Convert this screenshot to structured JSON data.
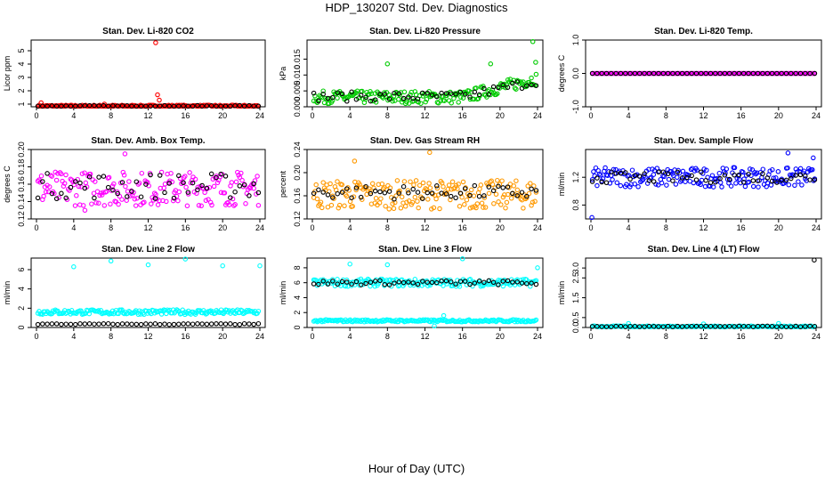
{
  "figure": {
    "title": "HDP_130207  Std. Dev. Diagnostics",
    "xlabel": "Hour of Day (UTC)"
  },
  "chart_data": [
    {
      "type": "scatter",
      "title": "Stan. Dev. Li-820 CO2",
      "xlabel": "",
      "ylabel": "Licor ppm",
      "xlim": [
        0,
        24
      ],
      "ylim": [
        0.8,
        5.8
      ],
      "xticks": [
        "0",
        "4",
        "8",
        "12",
        "16",
        "20",
        "24"
      ],
      "yticks": [
        "1",
        "2",
        "3",
        "4",
        "5"
      ],
      "series": [
        {
          "color": "#ff0000",
          "base": 0.85,
          "noise": 0.08,
          "extras": [
            [
              12.8,
              5.6
            ],
            [
              13.0,
              1.7
            ],
            [
              13.2,
              1.3
            ],
            [
              0.5,
              1.1
            ],
            [
              7.3,
              1.0
            ]
          ]
        },
        {
          "color": "#000000",
          "base": 0.85,
          "noise": 0.05,
          "extras": []
        }
      ]
    },
    {
      "type": "scatter",
      "title": "Stan. Dev. Li-820 Pressure",
      "xlabel": "",
      "ylabel": "kPa",
      "xlim": [
        0,
        24
      ],
      "ylim": [
        0,
        0.021
      ],
      "xticks": [
        "0",
        "4",
        "8",
        "12",
        "16",
        "20",
        "24"
      ],
      "yticks": [
        "0.000",
        "0.005",
        "0.010",
        "0.015"
      ],
      "series": [
        {
          "color": "#00cc00",
          "base": 0.003,
          "noise": 0.002,
          "trend": {
            "start": 16,
            "amount": 0.006
          },
          "extras": [
            [
              8,
              0.0135
            ],
            [
              19,
              0.0135
            ],
            [
              23.5,
              0.0205
            ],
            [
              23.8,
              0.014
            ]
          ]
        },
        {
          "color": "#000000",
          "base": 0.0032,
          "noise": 0.0015,
          "trend": {
            "start": 16,
            "amount": 0.005
          },
          "extras": []
        }
      ]
    },
    {
      "type": "scatter",
      "title": "Stan. Dev. Li-820 Temp.",
      "xlabel": "",
      "ylabel": "degrees C",
      "xlim": [
        0,
        24
      ],
      "ylim": [
        -1,
        1
      ],
      "xticks": [
        "0",
        "4",
        "8",
        "12",
        "16",
        "20",
        "24"
      ],
      "yticks": [
        "-1.0",
        "0.0",
        "1.0"
      ],
      "series": [
        {
          "color": "#ff00ff",
          "base": 0,
          "noise": 0,
          "extras": []
        },
        {
          "color": "#000000",
          "base": 0,
          "noise": 0,
          "extras": []
        }
      ]
    },
    {
      "type": "scatter",
      "title": "Stan. Dev. Amb. Box Temp.",
      "xlabel": "",
      "ylabel": "degrees C",
      "xlim": [
        0,
        24
      ],
      "ylim": [
        0.12,
        0.2
      ],
      "xticks": [
        "0",
        "4",
        "8",
        "12",
        "16",
        "20",
        "24"
      ],
      "yticks": [
        "0.12",
        "0.14",
        "0.16",
        "0.18",
        "0.20"
      ],
      "series": [
        {
          "color": "#ff00ff",
          "base": 0.155,
          "noise": 0.02,
          "extras": [
            [
              9.5,
              0.195
            ],
            [
              5.2,
              0.13
            ]
          ]
        },
        {
          "color": "#000000",
          "base": 0.158,
          "noise": 0.015,
          "extras": []
        }
      ]
    },
    {
      "type": "scatter",
      "title": "Stan. Dev. Gas Stream RH",
      "xlabel": "",
      "ylabel": "percent",
      "xlim": [
        0,
        24
      ],
      "ylim": [
        0.12,
        0.24
      ],
      "xticks": [
        "0",
        "4",
        "8",
        "12",
        "16",
        "20",
        "24"
      ],
      "yticks": [
        "0.12",
        "0.16",
        "0.20",
        "0.24"
      ],
      "series": [
        {
          "color": "#ff9900",
          "base": 0.162,
          "noise": 0.025,
          "extras": [
            [
              12.5,
              0.235
            ],
            [
              4.5,
              0.22
            ]
          ]
        },
        {
          "color": "#000000",
          "base": 0.166,
          "noise": 0.012,
          "extras": []
        }
      ]
    },
    {
      "type": "scatter",
      "title": "Stan. Dev. Sample Flow",
      "xlabel": "",
      "ylabel": "ml/min",
      "xlim": [
        0,
        24
      ],
      "ylim": [
        0.6,
        1.6
      ],
      "xticks": [
        "0",
        "4",
        "8",
        "12",
        "16",
        "20",
        "24"
      ],
      "yticks": [
        "0.8",
        "1.2"
      ],
      "series": [
        {
          "color": "#0000ff",
          "base": 1.2,
          "noise": 0.14,
          "extras": [
            [
              0.1,
              0.62
            ],
            [
              21,
              1.55
            ],
            [
              23.7,
              1.48
            ]
          ]
        },
        {
          "color": "#000000",
          "base": 1.2,
          "noise": 0.08,
          "extras": []
        }
      ]
    },
    {
      "type": "scatter",
      "title": "Stan. Dev. Line 2 Flow",
      "xlabel": "",
      "ylabel": "ml/min",
      "xlim": [
        0,
        24
      ],
      "ylim": [
        0,
        7.2
      ],
      "xticks": [
        "0",
        "4",
        "8",
        "12",
        "16",
        "20",
        "24"
      ],
      "yticks": [
        "0",
        "2",
        "4",
        "6"
      ],
      "series": [
        {
          "color": "#00ffff",
          "base": 1.6,
          "noise": 0.25,
          "extras": [
            [
              4,
              6.3
            ],
            [
              8,
              6.9
            ],
            [
              12,
              6.5
            ],
            [
              16,
              7.1
            ],
            [
              20,
              6.4
            ],
            [
              24,
              6.4
            ]
          ]
        },
        {
          "color": "#000000",
          "base": 0.35,
          "noise": 0.05,
          "extras": []
        }
      ]
    },
    {
      "type": "scatter",
      "title": "Stan. Dev. Line 3 Flow",
      "xlabel": "",
      "ylabel": "ml/min",
      "xlim": [
        0,
        24
      ],
      "ylim": [
        0,
        9.3
      ],
      "xticks": [
        "0",
        "4",
        "8",
        "12",
        "16",
        "20",
        "24"
      ],
      "yticks": [
        "0",
        "2",
        "4",
        "6",
        "8"
      ],
      "series": [
        {
          "color": "#00ffff",
          "base": 6.0,
          "noise": 0.5,
          "extras": [
            [
              4,
              8.5
            ],
            [
              8,
              8.4
            ],
            [
              16,
              9.2
            ],
            [
              24,
              8.0
            ]
          ]
        },
        {
          "color": "#00ffff",
          "base": 0.9,
          "noise": 0.15,
          "extras": [
            [
              13,
              0.2
            ],
            [
              14,
              1.6
            ]
          ]
        },
        {
          "color": "#000000",
          "base": 6.0,
          "noise": 0.3,
          "extras": []
        }
      ]
    },
    {
      "type": "scatter",
      "title": "Stan. Dev. Line 4 (LT) Flow",
      "xlabel": "",
      "ylabel": "ml/min",
      "xlim": [
        0,
        24
      ],
      "ylim": [
        0,
        3.5
      ],
      "xticks": [
        "0",
        "4",
        "8",
        "12",
        "16",
        "20",
        "24"
      ],
      "yticks": [
        "0.0",
        "0.5",
        "1.5",
        "2.5",
        "3.0"
      ],
      "series": [
        {
          "color": "#00ffff",
          "base": 0.05,
          "noise": 0.03,
          "extras": [
            [
              4,
              0.2
            ],
            [
              12,
              0.18
            ],
            [
              20,
              0.2
            ]
          ]
        },
        {
          "color": "#000000",
          "base": 0.05,
          "noise": 0.02,
          "extras": [
            [
              23.8,
              3.4
            ]
          ]
        }
      ]
    }
  ]
}
